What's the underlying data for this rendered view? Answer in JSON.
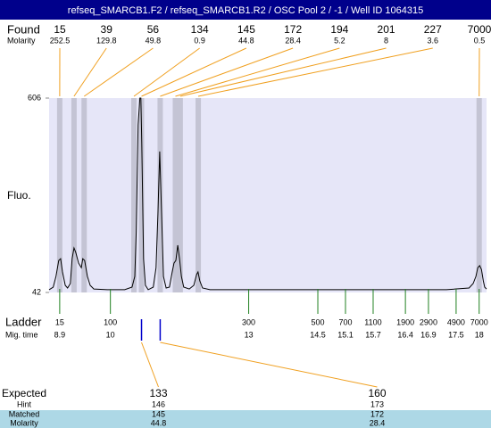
{
  "title": "refseq_SMARCB1.F2 / refseq_SMARCB1.R2 / OSC Pool 2 / -1 / Well ID 1064315",
  "found": {
    "label": "Found",
    "sizes": [
      15,
      39,
      56,
      134,
      145,
      172,
      194,
      201,
      227,
      7000
    ],
    "molarity_label": "Molarity",
    "molarity": [
      252.5,
      129.8,
      49.8,
      0.9,
      44.8,
      28.4,
      5.2,
      8,
      3.6,
      0.5
    ]
  },
  "ladder": {
    "label": "Ladder",
    "sizes": [
      15,
      100,
      300,
      500,
      700,
      1100,
      1900,
      2900,
      4900,
      7000
    ],
    "time_label": "Mig. time",
    "times": [
      8.9,
      10,
      13,
      14.5,
      15.1,
      15.7,
      16.4,
      16.9,
      17.5,
      18
    ]
  },
  "expected": {
    "label": "Expected",
    "values": [
      133,
      160
    ],
    "hint_label": "Hint",
    "hint": [
      146,
      173
    ],
    "matched_label": "Matched",
    "matched": [
      145,
      172
    ],
    "molarity_label": "Molarity",
    "molarity": [
      44.8,
      28.4
    ]
  },
  "chart_data": {
    "type": "line",
    "y_label": "Fluo.",
    "color": "#000000",
    "x": [
      8.67,
      8.76,
      8.82,
      8.88,
      8.92,
      8.96,
      9.02,
      9.07,
      9.13,
      9.17,
      9.21,
      9.25,
      9.31,
      9.37,
      9.4,
      9.44,
      9.5,
      9.56,
      9.64,
      9.93,
      10.31,
      10.47,
      10.53,
      10.56,
      10.6,
      10.64,
      10.66,
      10.68,
      10.72,
      10.76,
      10.82,
      10.93,
      10.99,
      11.03,
      11.07,
      11.11,
      11.15,
      11.21,
      11.28,
      11.34,
      11.38,
      11.42,
      11.46,
      11.5,
      11.54,
      11.59,
      11.71,
      11.81,
      11.87,
      11.9,
      11.94,
      12.0,
      12.16,
      13.42,
      15.35,
      17.29,
      17.78,
      17.87,
      17.93,
      17.97,
      18.01,
      18.05,
      18.09,
      18.12,
      18.16
    ],
    "values": [
      50,
      57.5,
      88.6,
      135,
      140,
      101.5,
      62.7,
      55,
      68,
      140,
      171,
      158,
      127,
      114,
      140,
      135,
      88.6,
      62.7,
      52,
      50,
      50,
      57.5,
      88.6,
      218,
      528,
      606,
      606,
      477,
      140,
      62.7,
      50,
      57.5,
      114,
      270,
      451,
      270,
      88.6,
      55,
      57.5,
      101.5,
      127,
      135,
      179,
      140,
      88.6,
      57.5,
      52,
      62.7,
      94,
      101.5,
      75.6,
      55,
      50,
      50,
      50,
      50,
      55,
      68,
      88.6,
      114,
      120,
      109,
      75.6,
      57.5,
      52
    ],
    "xlim": [
      8.67,
      18.16
    ],
    "ylim": [
      42,
      606
    ],
    "yticks": [
      42,
      606
    ]
  }
}
